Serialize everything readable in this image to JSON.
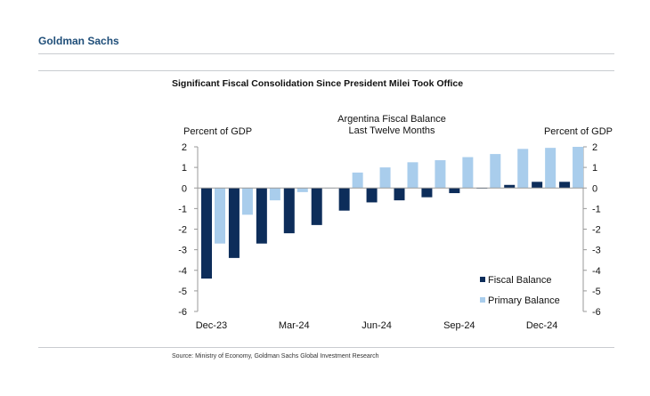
{
  "brand": "Goldman Sachs",
  "chart_title": "Significant Fiscal Consolidation Since President Milei Took Office",
  "source": "Source: Ministry of Economy, Goldman Sachs Global Investment Research",
  "chart_data": {
    "type": "bar",
    "title": "Argentina Fiscal Balance",
    "subtitle": "Last Twelve Months",
    "ylabel_left": "Percent of GDP",
    "ylabel_right": "Percent of GDP",
    "ylim": [
      -6,
      2
    ],
    "yticks": [
      2,
      1,
      0,
      -1,
      -2,
      -3,
      -4,
      -5,
      -6
    ],
    "categories": [
      "Dec-23",
      "Jan-24",
      "Feb-24",
      "Mar-24",
      "Apr-24",
      "May-24",
      "Jun-24",
      "Jul-24",
      "Aug-24",
      "Sep-24",
      "Oct-24",
      "Nov-24",
      "Dec-24",
      "Jan-25"
    ],
    "xtick_labels": [
      "Dec-23",
      "Mar-24",
      "Jun-24",
      "Sep-24",
      "Dec-24"
    ],
    "series": [
      {
        "name": "Fiscal Balance",
        "color": "#0d2d5a",
        "values": [
          -4.4,
          -3.4,
          -2.7,
          -2.2,
          -1.8,
          -1.1,
          -0.7,
          -0.6,
          -0.45,
          -0.25,
          -0.03,
          0.15,
          0.3,
          0.3
        ]
      },
      {
        "name": "Primary Balance",
        "color": "#a9cdec",
        "values": [
          -2.7,
          -1.3,
          -0.6,
          -0.2,
          0.0,
          0.75,
          1.0,
          1.25,
          1.35,
          1.5,
          1.65,
          1.9,
          1.95,
          2.0
        ]
      }
    ],
    "legend": "bottom-right",
    "grid": false
  }
}
